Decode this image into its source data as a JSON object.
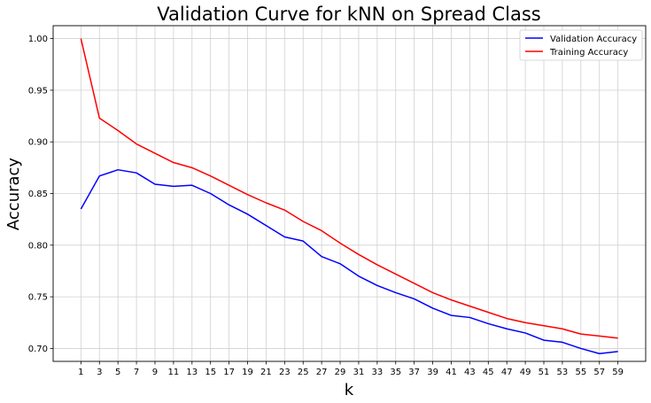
{
  "chart_data": {
    "type": "line",
    "title": "Validation Curve for kNN on Spread Class",
    "xlabel": "k",
    "ylabel": "Accuracy",
    "x": [
      1,
      3,
      5,
      7,
      9,
      11,
      13,
      15,
      17,
      19,
      21,
      23,
      25,
      27,
      29,
      31,
      33,
      35,
      37,
      39,
      41,
      43,
      45,
      47,
      49,
      51,
      53,
      55,
      57,
      59
    ],
    "xlim": [
      -2,
      62
    ],
    "ylim": [
      0.6875,
      1.0125
    ],
    "yticks": [
      0.7,
      0.75,
      0.8,
      0.85,
      0.9,
      0.95,
      1.0
    ],
    "ytick_labels": [
      "0.70",
      "0.75",
      "0.80",
      "0.85",
      "0.90",
      "0.95",
      "1.00"
    ],
    "grid": true,
    "legend_position": "top-right",
    "series": [
      {
        "name": "Validation Accuracy",
        "color": "#0000ff",
        "values": [
          0.835,
          0.867,
          0.873,
          0.87,
          0.859,
          0.857,
          0.858,
          0.85,
          0.839,
          0.83,
          0.819,
          0.808,
          0.804,
          0.789,
          0.782,
          0.77,
          0.761,
          0.754,
          0.748,
          0.739,
          0.732,
          0.73,
          0.724,
          0.719,
          0.715,
          0.708,
          0.706,
          0.7,
          0.695,
          0.697
        ]
      },
      {
        "name": "Training Accuracy",
        "color": "#ff0000",
        "values": [
          1.0,
          0.923,
          0.911,
          0.898,
          0.889,
          0.88,
          0.875,
          0.867,
          0.858,
          0.849,
          0.841,
          0.834,
          0.823,
          0.814,
          0.802,
          0.791,
          0.781,
          0.772,
          0.763,
          0.754,
          0.747,
          0.741,
          0.735,
          0.729,
          0.725,
          0.722,
          0.719,
          0.714,
          0.712,
          0.71
        ]
      }
    ]
  }
}
